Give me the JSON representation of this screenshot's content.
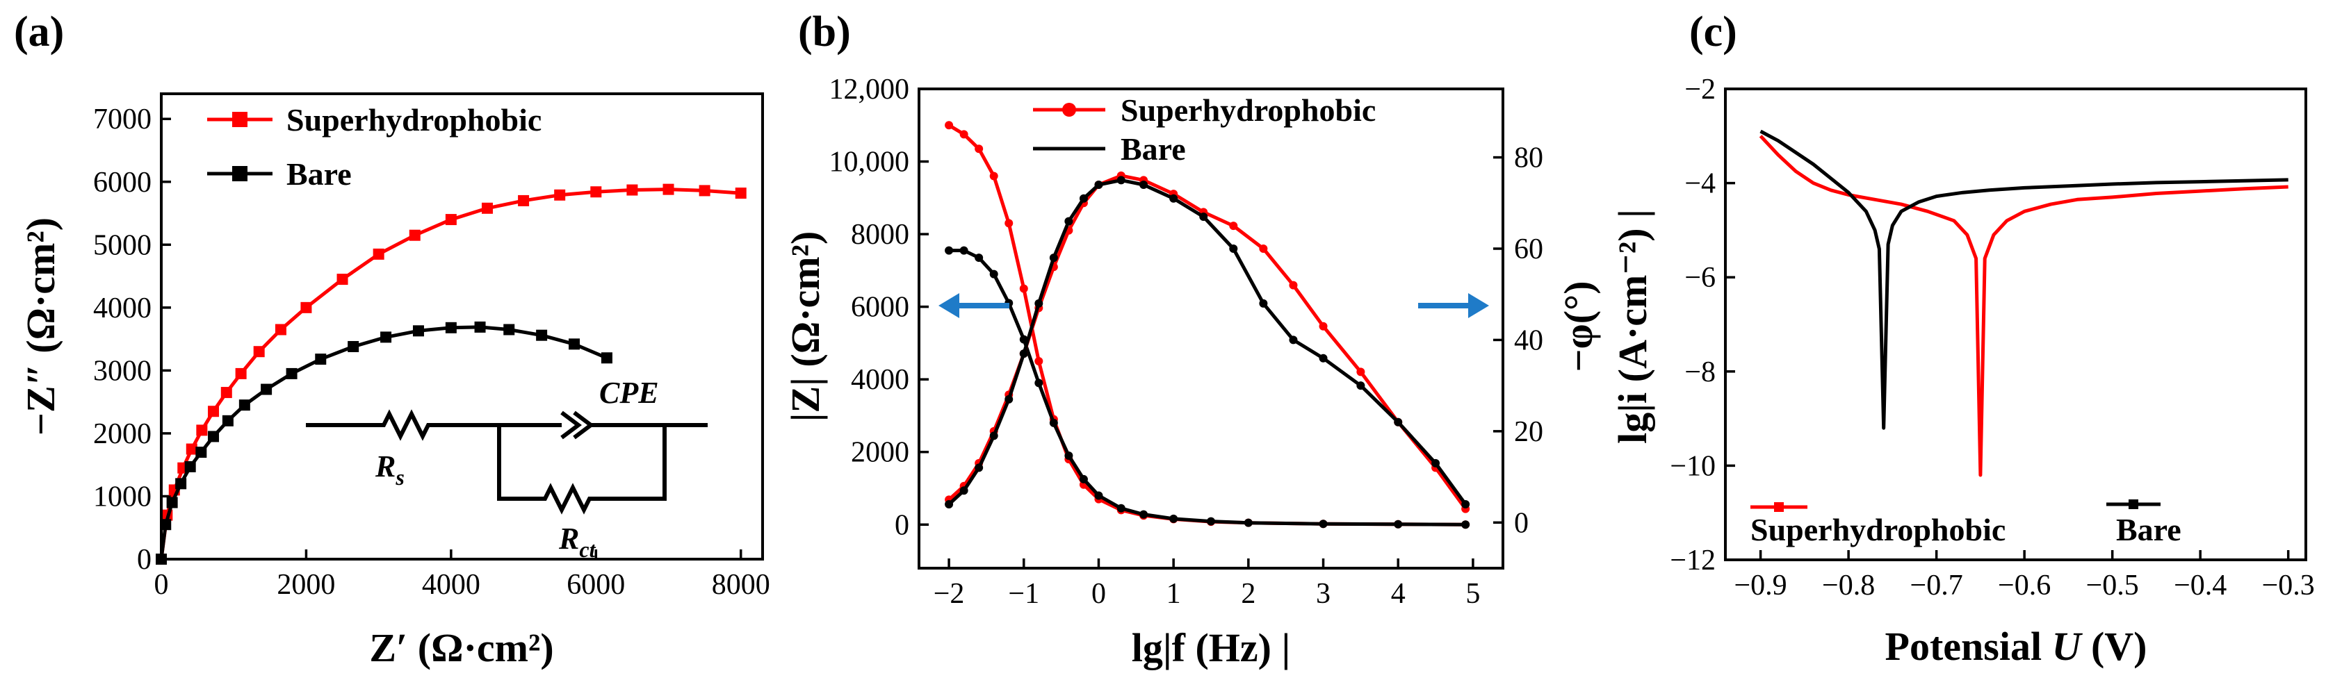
{
  "colors": {
    "red": "#ff0000",
    "black": "#000000",
    "arrow": "#1f7bc8"
  },
  "chart_data": [
    {
      "panel": "(a)",
      "type": "line",
      "title": "",
      "xlabel": "Z′  (Ω·cm²)",
      "ylabel": "−Z″  (Ω·cm²)",
      "xlim": [
        0,
        8300
      ],
      "ylim": [
        0,
        7400
      ],
      "xticks": [
        0,
        2000,
        4000,
        6000,
        8000
      ],
      "xtick_labels": [
        "0",
        "2000",
        "4000",
        "6000",
        "8000"
      ],
      "yticks": [
        0,
        1000,
        2000,
        3000,
        4000,
        5000,
        6000,
        7000
      ],
      "ytick_labels": [
        "0",
        "1000",
        "2000",
        "3000",
        "4000",
        "5000",
        "6000",
        "7000"
      ],
      "legend_position": "top-left",
      "series": [
        {
          "name": "Superhydrophobic",
          "color": "#ff0000",
          "marker": "square",
          "x": [
            0,
            80,
            180,
            300,
            420,
            560,
            720,
            900,
            1100,
            1350,
            1650,
            2000,
            2500,
            3000,
            3500,
            4000,
            4500,
            5000,
            5500,
            6000,
            6500,
            7000,
            7500,
            8000
          ],
          "y": [
            0,
            700,
            1100,
            1450,
            1750,
            2050,
            2350,
            2650,
            2950,
            3300,
            3650,
            4000,
            4450,
            4850,
            5150,
            5400,
            5580,
            5700,
            5790,
            5840,
            5870,
            5880,
            5860,
            5820
          ]
        },
        {
          "name": "Bare",
          "color": "#000000",
          "marker": "square",
          "x": [
            0,
            60,
            150,
            270,
            400,
            550,
            720,
            920,
            1150,
            1450,
            1800,
            2200,
            2650,
            3100,
            3550,
            4000,
            4400,
            4800,
            5250,
            5700,
            6150
          ],
          "y": [
            0,
            550,
            900,
            1200,
            1470,
            1700,
            1950,
            2200,
            2450,
            2700,
            2950,
            3180,
            3380,
            3530,
            3630,
            3680,
            3690,
            3650,
            3560,
            3420,
            3200
          ]
        }
      ],
      "annotations": {
        "circuit_labels": [
          "CPE",
          "R",
          "s",
          "R",
          "ct"
        ]
      }
    },
    {
      "panel": "(b)",
      "type": "line",
      "title": "",
      "xlabel": "lg|f (Hz) |",
      "ylabel": "|Z| (Ω·cm²)",
      "y2label": "−φ(°)",
      "xlim": [
        -2.4,
        5.4
      ],
      "ylim": [
        -1200,
        12000
      ],
      "y2lim": [
        -10,
        95
      ],
      "xticks": [
        -2,
        -1,
        0,
        1,
        2,
        3,
        4,
        5
      ],
      "xtick_labels": [
        "−2",
        "−1",
        "0",
        "1",
        "2",
        "3",
        "4",
        "5"
      ],
      "yticks": [
        0,
        2000,
        4000,
        6000,
        8000,
        10000,
        12000
      ],
      "ytick_labels": [
        "0",
        "2000",
        "4000",
        "6000",
        "8000",
        "10,000",
        "12,000"
      ],
      "y2ticks": [
        0,
        20,
        40,
        60,
        80
      ],
      "y2tick_labels": [
        "0",
        "20",
        "40",
        "60",
        "80"
      ],
      "legend_position": "top-right",
      "arrows": [
        "left",
        "right"
      ],
      "series": [
        {
          "name": "Superhydrophobic",
          "quantity": "|Z|",
          "axis": "left",
          "color": "#ff0000",
          "x": [
            -2.0,
            -1.8,
            -1.6,
            -1.4,
            -1.2,
            -1.0,
            -0.8,
            -0.6,
            -0.4,
            -0.2,
            0.0,
            0.3,
            0.6,
            1.0,
            1.5,
            2.0,
            3.0,
            4.0,
            4.9
          ],
          "y": [
            11000,
            10750,
            10350,
            9600,
            8300,
            6500,
            4500,
            2900,
            1800,
            1100,
            700,
            400,
            250,
            150,
            80,
            50,
            20,
            10,
            0
          ]
        },
        {
          "name": "Bare",
          "quantity": "|Z|",
          "axis": "left",
          "color": "#000000",
          "x": [
            -2.0,
            -1.8,
            -1.6,
            -1.4,
            -1.2,
            -1.0,
            -0.8,
            -0.6,
            -0.4,
            -0.2,
            0.0,
            0.3,
            0.6,
            1.0,
            1.5,
            2.0,
            3.0,
            4.0,
            4.9
          ],
          "y": [
            7550,
            7550,
            7350,
            6900,
            6100,
            5100,
            3900,
            2800,
            1900,
            1250,
            800,
            450,
            280,
            160,
            90,
            50,
            20,
            10,
            0
          ]
        },
        {
          "name": "Superhydrophobic",
          "quantity": "−φ",
          "axis": "right",
          "color": "#ff0000",
          "x": [
            -2.0,
            -1.8,
            -1.6,
            -1.4,
            -1.2,
            -1.0,
            -0.8,
            -0.6,
            -0.4,
            -0.2,
            0.0,
            0.3,
            0.6,
            1.0,
            1.4,
            1.8,
            2.2,
            2.6,
            3.0,
            3.5,
            4.0,
            4.5,
            4.9
          ],
          "y": [
            5,
            8,
            13,
            20,
            28,
            37,
            47,
            56,
            64,
            70,
            74,
            76,
            75,
            72,
            68,
            65,
            60,
            52,
            43,
            33,
            22,
            12,
            3
          ]
        },
        {
          "name": "Bare",
          "quantity": "−φ",
          "axis": "right",
          "color": "#000000",
          "x": [
            -2.0,
            -1.8,
            -1.6,
            -1.4,
            -1.2,
            -1.0,
            -0.8,
            -0.6,
            -0.4,
            -0.2,
            0.0,
            0.3,
            0.6,
            1.0,
            1.4,
            1.8,
            2.2,
            2.6,
            3.0,
            3.5,
            4.0,
            4.5,
            4.9
          ],
          "y": [
            4,
            7,
            12,
            19,
            27,
            37,
            48,
            58,
            66,
            71,
            74,
            75,
            74,
            71,
            67,
            60,
            48,
            40,
            36,
            30,
            22,
            13,
            4
          ]
        }
      ]
    },
    {
      "panel": "(c)",
      "type": "line",
      "title": "",
      "xlabel_prefix": "Potensial ",
      "xlabel_var": "U",
      "xlabel_suffix": " (V)",
      "ylabel": "lg|i (A·cm⁻²) |",
      "xlim": [
        -0.94,
        -0.28
      ],
      "ylim": [
        -12,
        -2
      ],
      "xticks": [
        -0.9,
        -0.8,
        -0.7,
        -0.6,
        -0.5,
        -0.4,
        -0.3
      ],
      "xtick_labels": [
        "−0.9",
        "−0.8",
        "−0.7",
        "−0.6",
        "−0.5",
        "−0.4",
        "−0.3"
      ],
      "yticks": [
        -12,
        -10,
        -8,
        -6,
        -4,
        -2
      ],
      "ytick_labels": [
        "−12",
        "−10",
        "−8",
        "−6",
        "−4",
        "−2"
      ],
      "legend_position": "bottom-left",
      "series": [
        {
          "name": "Superhydrophobic",
          "color": "#ff0000",
          "x": [
            -0.9,
            -0.88,
            -0.86,
            -0.84,
            -0.82,
            -0.8,
            -0.77,
            -0.74,
            -0.71,
            -0.68,
            -0.665,
            -0.655,
            -0.65,
            -0.645,
            -0.635,
            -0.62,
            -0.6,
            -0.57,
            -0.54,
            -0.5,
            -0.45,
            -0.4,
            -0.35,
            -0.3
          ],
          "y": [
            -3.0,
            -3.4,
            -3.75,
            -4.0,
            -4.15,
            -4.25,
            -4.35,
            -4.45,
            -4.6,
            -4.8,
            -5.1,
            -5.6,
            -10.2,
            -5.6,
            -5.1,
            -4.8,
            -4.6,
            -4.45,
            -4.35,
            -4.3,
            -4.22,
            -4.17,
            -4.12,
            -4.08
          ]
        },
        {
          "name": "Bare",
          "color": "#000000",
          "x": [
            -0.9,
            -0.88,
            -0.86,
            -0.84,
            -0.82,
            -0.8,
            -0.78,
            -0.77,
            -0.765,
            -0.76,
            -0.755,
            -0.75,
            -0.74,
            -0.72,
            -0.7,
            -0.67,
            -0.64,
            -0.6,
            -0.55,
            -0.5,
            -0.45,
            -0.4,
            -0.35,
            -0.3
          ],
          "y": [
            -2.9,
            -3.1,
            -3.35,
            -3.6,
            -3.9,
            -4.2,
            -4.6,
            -5.0,
            -5.4,
            -9.2,
            -5.3,
            -4.9,
            -4.6,
            -4.4,
            -4.28,
            -4.2,
            -4.15,
            -4.1,
            -4.06,
            -4.02,
            -3.99,
            -3.97,
            -3.95,
            -3.93
          ]
        }
      ]
    }
  ]
}
